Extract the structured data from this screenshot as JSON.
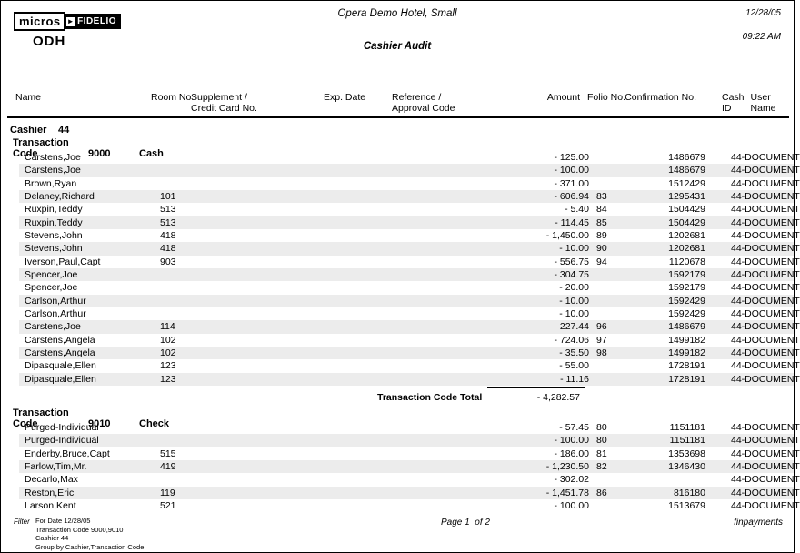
{
  "header": {
    "logo_part1": "micros",
    "logo_arrow": "►",
    "logo_part2": "FIDELIO",
    "logo_sub": "ODH",
    "hotel_title": "Opera Demo Hotel, Small",
    "report_title": "Cashier Audit",
    "date": "12/28/05",
    "time": "09:22 AM"
  },
  "columns": {
    "name": "Name",
    "room": "Room No.",
    "supplement_line1": "Supplement /",
    "supplement_line2": "Credit Card No.",
    "exp_date": "Exp. Date",
    "reference_line1": "Reference /",
    "reference_line2": "Approval Code",
    "amount": "Amount",
    "folio": "Folio No.",
    "confirmation": "Confirmation No.",
    "cash_line1": "Cash",
    "cash_line2": "ID",
    "user_line1": "User",
    "user_line2": "Name"
  },
  "cashier": {
    "label": "Cashier",
    "number": "44"
  },
  "sections": [
    {
      "label": "Transaction Code",
      "code": "9000",
      "code_name": "Cash",
      "rows": [
        {
          "name": "Carstens,Joe",
          "room": "",
          "amount": "- 125.00",
          "folio": "",
          "confirmation": "1486679",
          "user": "44-DOCUMENT"
        },
        {
          "name": "Carstens,Joe",
          "room": "",
          "amount": "- 100.00",
          "folio": "",
          "confirmation": "1486679",
          "user": "44-DOCUMENT"
        },
        {
          "name": "Brown,Ryan",
          "room": "",
          "amount": "- 371.00",
          "folio": "",
          "confirmation": "1512429",
          "user": "44-DOCUMENT"
        },
        {
          "name": "Delaney,Richard",
          "room": "101",
          "amount": "- 606.94",
          "folio": "83",
          "confirmation": "1295431",
          "user": "44-DOCUMENT"
        },
        {
          "name": "Ruxpin,Teddy",
          "room": "513",
          "amount": "- 5.40",
          "folio": "84",
          "confirmation": "1504429",
          "user": "44-DOCUMENT"
        },
        {
          "name": "Ruxpin,Teddy",
          "room": "513",
          "amount": "- 114.45",
          "folio": "85",
          "confirmation": "1504429",
          "user": "44-DOCUMENT"
        },
        {
          "name": "Stevens,John",
          "room": "418",
          "amount": "- 1,450.00",
          "folio": "89",
          "confirmation": "1202681",
          "user": "44-DOCUMENT"
        },
        {
          "name": "Stevens,John",
          "room": "418",
          "amount": "- 10.00",
          "folio": "90",
          "confirmation": "1202681",
          "user": "44-DOCUMENT"
        },
        {
          "name": "Iverson,Paul,Capt",
          "room": "903",
          "amount": "- 556.75",
          "folio": "94",
          "confirmation": "1120678",
          "user": "44-DOCUMENT"
        },
        {
          "name": "Spencer,Joe",
          "room": "",
          "amount": "- 304.75",
          "folio": "",
          "confirmation": "1592179",
          "user": "44-DOCUMENT"
        },
        {
          "name": "Spencer,Joe",
          "room": "",
          "amount": "- 20.00",
          "folio": "",
          "confirmation": "1592179",
          "user": "44-DOCUMENT"
        },
        {
          "name": "Carlson,Arthur",
          "room": "",
          "amount": "- 10.00",
          "folio": "",
          "confirmation": "1592429",
          "user": "44-DOCUMENT"
        },
        {
          "name": "Carlson,Arthur",
          "room": "",
          "amount": "- 10.00",
          "folio": "",
          "confirmation": "1592429",
          "user": "44-DOCUMENT"
        },
        {
          "name": "Carstens,Joe",
          "room": "114",
          "amount": "227.44",
          "folio": "96",
          "confirmation": "1486679",
          "user": "44-DOCUMENT"
        },
        {
          "name": "Carstens,Angela",
          "room": "102",
          "amount": "- 724.06",
          "folio": "97",
          "confirmation": "1499182",
          "user": "44-DOCUMENT"
        },
        {
          "name": "Carstens,Angela",
          "room": "102",
          "amount": "- 35.50",
          "folio": "98",
          "confirmation": "1499182",
          "user": "44-DOCUMENT"
        },
        {
          "name": "Dipasquale,Ellen",
          "room": "123",
          "amount": "- 55.00",
          "folio": "",
          "confirmation": "1728191",
          "user": "44-DOCUMENT"
        },
        {
          "name": "Dipasquale,Ellen",
          "room": "123",
          "amount": "- 11.16",
          "folio": "",
          "confirmation": "1728191",
          "user": "44-DOCUMENT"
        }
      ],
      "total": {
        "label": "Transaction Code",
        "total_label": "Total",
        "amount": "- 4,282.57"
      }
    },
    {
      "label": "Transaction Code",
      "code": "9010",
      "code_name": "Check",
      "rows": [
        {
          "name": "Purged-Individual",
          "room": "",
          "amount": "- 57.45",
          "folio": "80",
          "confirmation": "1151181",
          "user": "44-DOCUMENT"
        },
        {
          "name": "Purged-Individual",
          "room": "",
          "amount": "- 100.00",
          "folio": "80",
          "confirmation": "1151181",
          "user": "44-DOCUMENT"
        },
        {
          "name": "Enderby,Bruce,Capt",
          "room": "515",
          "amount": "- 186.00",
          "folio": "81",
          "confirmation": "1353698",
          "user": "44-DOCUMENT"
        },
        {
          "name": "Farlow,Tim,Mr.",
          "room": "419",
          "amount": "- 1,230.50",
          "folio": "82",
          "confirmation": "1346430",
          "user": "44-DOCUMENT"
        },
        {
          "name": "Decarlo,Max",
          "room": "",
          "amount": "- 302.02",
          "folio": "",
          "confirmation": "",
          "user": "44-DOCUMENT"
        },
        {
          "name": "Reston,Eric",
          "room": "119",
          "amount": "- 1,451.78",
          "folio": "86",
          "confirmation": "816180",
          "user": "44-DOCUMENT"
        },
        {
          "name": "Larson,Kent",
          "room": "521",
          "amount": "- 100.00",
          "folio": "",
          "confirmation": "1513679",
          "user": "44-DOCUMENT"
        }
      ]
    }
  ],
  "footer": {
    "filter_label": "Filter",
    "filter_lines": [
      "For Date 12/28/05",
      "Transaction Code 9000,9010",
      "Cashier 44",
      "Group by Cashier,Transaction Code"
    ],
    "page_no": "Page 1  of 2",
    "report_name": "finpayments"
  }
}
